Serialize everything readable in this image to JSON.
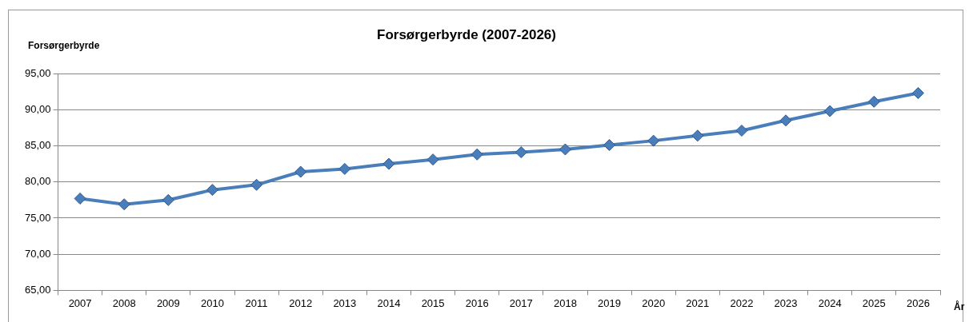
{
  "chart_data": {
    "type": "line",
    "title": "Forsørgerbyrde (2007-2026)",
    "ylabel": "Forsørgerbyrde",
    "xlabel": "År",
    "categories": [
      "2007",
      "2008",
      "2009",
      "2010",
      "2011",
      "2012",
      "2013",
      "2014",
      "2015",
      "2016",
      "2017",
      "2018",
      "2019",
      "2020",
      "2021",
      "2022",
      "2023",
      "2024",
      "2025",
      "2026"
    ],
    "series": [
      {
        "color": "#4a7ebb",
        "values": [
          77.7,
          76.9,
          77.5,
          78.9,
          79.6,
          81.4,
          81.8,
          82.5,
          83.1,
          83.8,
          84.1,
          84.5,
          85.1,
          85.7,
          86.4,
          87.1,
          88.5,
          89.8,
          91.1,
          92.3
        ]
      }
    ],
    "ylim": [
      65,
      95
    ],
    "yticks": [
      {
        "value": 65,
        "label": "65,00"
      },
      {
        "value": 70,
        "label": "70,00"
      },
      {
        "value": 75,
        "label": "75,00"
      },
      {
        "value": 80,
        "label": "80,00"
      },
      {
        "value": 85,
        "label": "85,00"
      },
      {
        "value": 90,
        "label": "90,00"
      },
      {
        "value": 95,
        "label": "95,00"
      }
    ],
    "grid": "y",
    "legend": false,
    "marker": "diamond",
    "line_style": "solid"
  }
}
